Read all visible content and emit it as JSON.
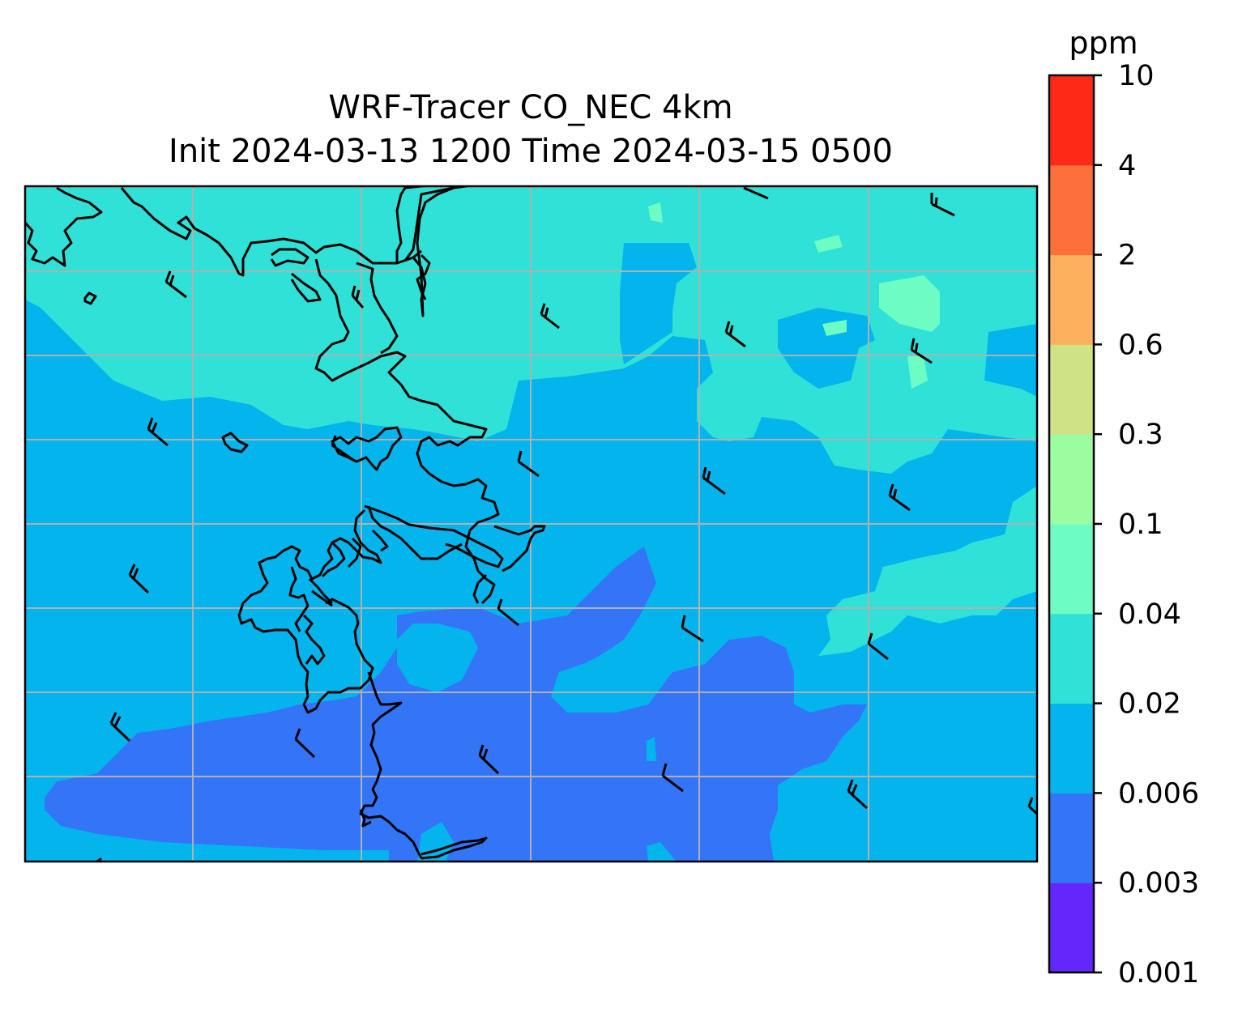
{
  "title": {
    "line1": "WRF-Tracer CO_NEC 4km",
    "line2": "Init 2024-03-13 1200 Time 2024-03-15 0500"
  },
  "colorbar": {
    "unit": "ppm",
    "levels": [
      "0.001",
      "0.003",
      "0.006",
      "0.02",
      "0.04",
      "0.1",
      "0.3",
      "0.6",
      "2",
      "4",
      "10"
    ],
    "colors": [
      "#6427fb",
      "#3475f7",
      "#03b5ec",
      "#30e1d7",
      "#6efcc5",
      "#9cfca0",
      "#d0e286",
      "#fdb15f",
      "#fe703b",
      "#fe2a17"
    ]
  },
  "map": {
    "field": "CO_NEC",
    "grid_lines": true,
    "wind_barbs": true,
    "coastlines": true
  }
}
